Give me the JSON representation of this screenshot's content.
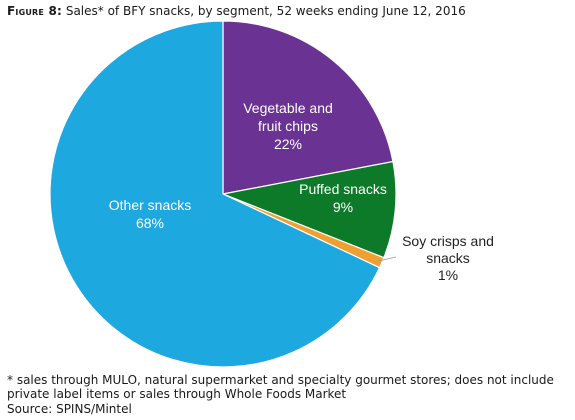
{
  "figure": {
    "label": "Figure 8:",
    "title": "Sales* of BFY snacks, by segment, 52 weeks ending June 12, 2016",
    "footnote": "* sales through MULO, natural supermarket and specialty gourmet stores; does not include private label items or sales through Whole Foods Market",
    "source": "Source: SPINS/Mintel"
  },
  "chart_data": {
    "type": "pie",
    "title": "Sales* of BFY snacks, by segment, 52 weeks ending June 12, 2016",
    "start": "12 o'clock",
    "direction": "clockwise",
    "slices": [
      {
        "label": "Vegetable and fruit chips",
        "label_lines": [
          "Vegetable and",
          "fruit chips"
        ],
        "value": 22,
        "value_label": "22%",
        "color": "#6a3393",
        "label_color": "#ffffff"
      },
      {
        "label": "Puffed snacks",
        "label_lines": [
          "Puffed snacks"
        ],
        "value": 9,
        "value_label": "9%",
        "color": "#0c7a29",
        "label_color": "#ffffff"
      },
      {
        "label": "Soy crisps and snacks",
        "label_lines": [
          "Soy crisps and",
          "snacks"
        ],
        "value": 1,
        "value_label": "1%",
        "color": "#f0a030",
        "label_color": "#222222"
      },
      {
        "label": "Other snacks",
        "label_lines": [
          "Other snacks"
        ],
        "value": 68,
        "value_label": "68%",
        "color": "#1ea8e0",
        "label_color": "#ffffff"
      }
    ]
  }
}
